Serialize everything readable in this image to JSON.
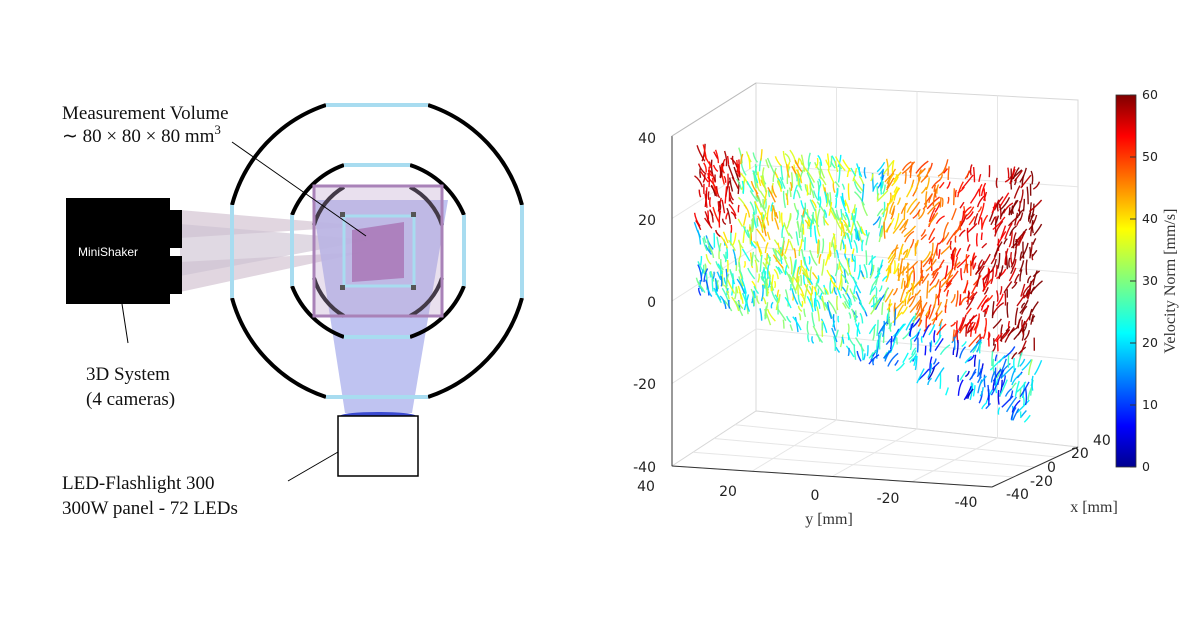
{
  "setup": {
    "measurement_volume_line1": "Measurement Volume",
    "measurement_volume_line2": "∼ 80 × 80 × 80 mm",
    "measurement_volume_sup": "3",
    "camera_label": "MiniShaker",
    "system_line1": "3D System",
    "system_line2": "(4 cameras)",
    "flashlight_line1": "LED-Flashlight 300",
    "flashlight_line2": "300W panel - 72 LEDs",
    "colors": {
      "frame_black": "#000000",
      "window_cyan": "#a8dcf0",
      "light_beam": "#b8bcf0",
      "volume_purple": "#a982b8",
      "lens_blue": "#3a4ad0"
    }
  },
  "chart_data": {
    "type": "scatter",
    "title": "",
    "xlabel": "x [mm]",
    "ylabel": "y [mm]",
    "zlabel": "",
    "x_ticks": [
      "40",
      "20",
      "0",
      "-20",
      "-40"
    ],
    "y_ticks": [
      "40",
      "20",
      "0",
      "-20",
      "-40"
    ],
    "z_ticks": [
      "40",
      "20",
      "0",
      "-20",
      "-40"
    ],
    "xlim": [
      -40,
      40
    ],
    "ylim": [
      -40,
      40
    ],
    "zlim": [
      -40,
      40
    ],
    "grid": true,
    "colorbar": {
      "label": "Velocity Norm [mm/s]",
      "ticks": [
        "60",
        "50",
        "40",
        "30",
        "20",
        "10",
        "0"
      ],
      "range": [
        0,
        60
      ],
      "colormap": "jet"
    }
  }
}
